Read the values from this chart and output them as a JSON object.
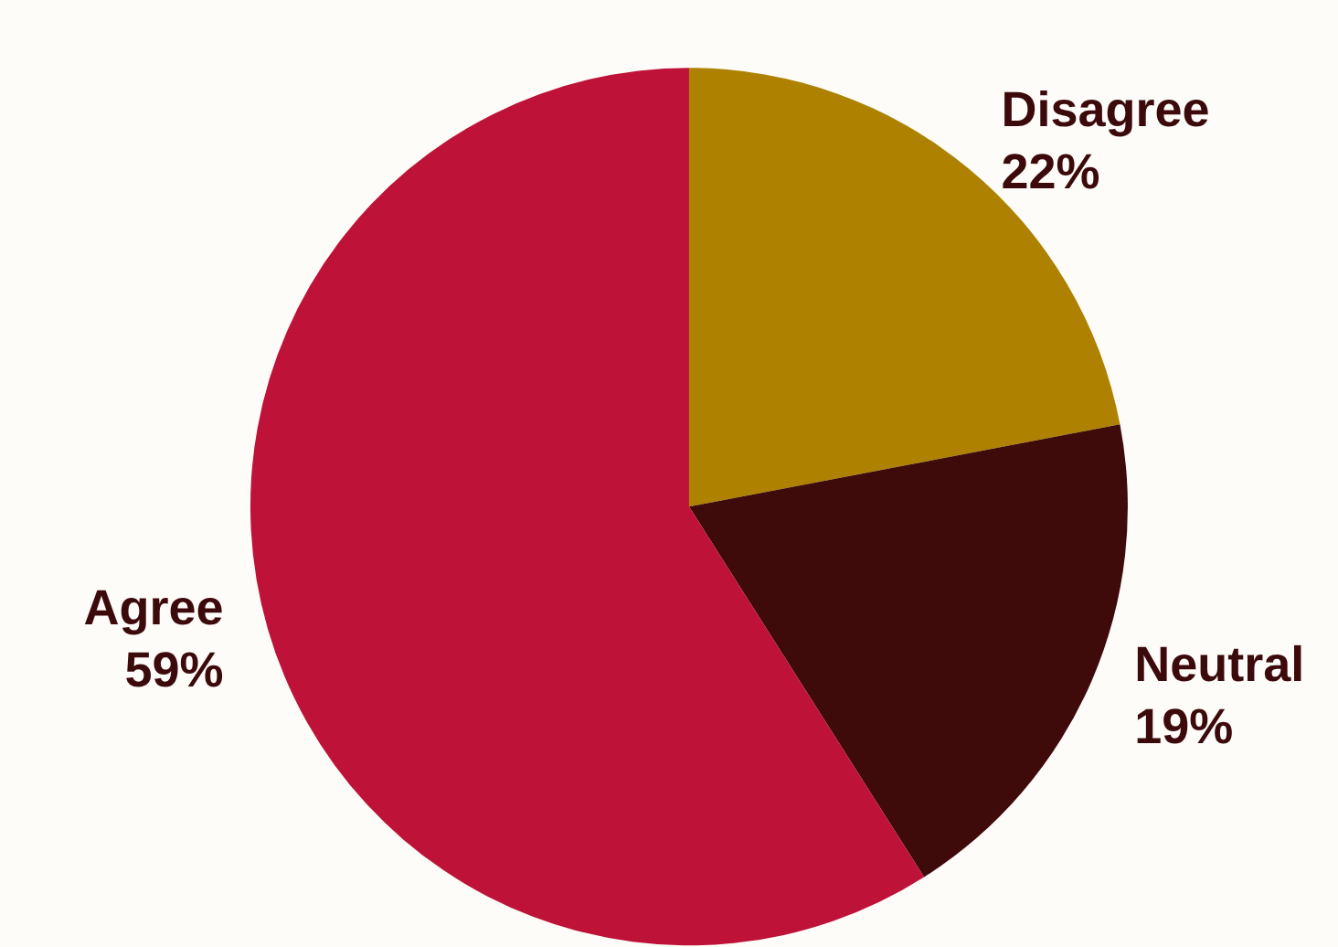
{
  "chart_data": {
    "type": "pie",
    "categories": [
      "Disagree",
      "Neutral",
      "Agree"
    ],
    "values": [
      22,
      19,
      59
    ],
    "colors": [
      "#ae8200",
      "#3e0a0a",
      "#be1238"
    ],
    "value_labels": [
      "22%",
      "19%",
      "59%"
    ],
    "legend": false
  }
}
